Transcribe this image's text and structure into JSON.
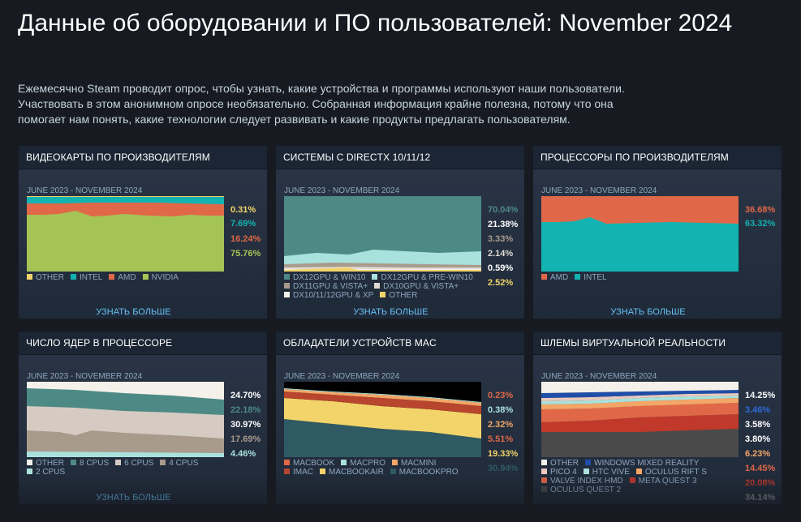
{
  "page": {
    "title": "Данные об оборудовании и ПО пользователей: November 2024",
    "intro_1": "Ежемесячно Steam проводит опрос, чтобы узнать, какие устройства и программы используют наши пользователи.",
    "intro_2": "Участвовать в этом анонимном опросе необязательно. Собранная информация крайне полезна, потому что она",
    "intro_3": "помогает нам понять, какие технологии следует развивать и какие продукты предлагать пользователям."
  },
  "learn_more": "УЗНАТЬ БОЛЬШЕ",
  "panels": [
    {
      "title": "ВИДЕОКАРТЫ ПО ПРОИЗВОДИТЕЛЯМ",
      "range": "JUNE 2023 - NOVEMBER 2024",
      "percents": [
        {
          "text": "0.31%",
          "color": "#f2d46a"
        },
        {
          "text": "7.69%",
          "color": "#13b3b2"
        },
        {
          "text": "16.24%",
          "color": "#e06848"
        },
        {
          "text": "75.76%",
          "color": "#a5c456"
        }
      ],
      "legend": [
        [
          {
            "label": "OTHER",
            "color": "#f2d46a"
          },
          {
            "label": "INTEL",
            "color": "#13b3b2"
          },
          {
            "label": "AMD",
            "color": "#e06848"
          },
          {
            "label": "NVIDIA",
            "color": "#a5c456"
          }
        ]
      ]
    },
    {
      "title": "СИСТЕМЫ С DIRECTX 10/11/12",
      "range": "JUNE 2023 - NOVEMBER 2024",
      "percents": [
        {
          "text": "70.04%",
          "color": "#4d8a86"
        },
        {
          "text": "21.38%",
          "color": "#ffffff"
        },
        {
          "text": "3.33%",
          "color": "#a89b8c"
        },
        {
          "text": "2.14%",
          "color": "#dedad2"
        },
        {
          "text": "0.59%",
          "color": "#ffffff"
        },
        {
          "text": "2.52%",
          "color": "#f2d46a"
        }
      ],
      "legend": [
        [
          {
            "label": "DX12GPU & WIN10",
            "color": "#4d8a86"
          },
          {
            "label": "DX12GPU & PRE-WIN10",
            "color": "#a9e1dc"
          }
        ],
        [
          {
            "label": "DX11GPU & VISTA+",
            "color": "#a89b8c"
          },
          {
            "label": "DX10GPU & VISTA+",
            "color": "#dedad2"
          }
        ],
        [
          {
            "label": "DX10/11/12GPU & XP",
            "color": "#f4f1ea"
          },
          {
            "label": "OTHER",
            "color": "#f2d46a"
          }
        ]
      ]
    },
    {
      "title": "ПРОЦЕССОРЫ ПО ПРОИЗВОДИТЕЛЯМ",
      "range": "JUNE 2023 - NOVEMBER 2024",
      "percents": [
        {
          "text": "36.68%",
          "color": "#e06848"
        },
        {
          "text": "63.32%",
          "color": "#13b3b2"
        }
      ],
      "legend": [
        [
          {
            "label": "AMD",
            "color": "#e06848"
          },
          {
            "label": "INTEL",
            "color": "#13b3b2"
          }
        ]
      ]
    },
    {
      "title": "ЧИСЛО ЯДЕР В ПРОЦЕССОРЕ",
      "range": "JUNE 2023 - NOVEMBER 2024",
      "percents": [
        {
          "text": "24.70%",
          "color": "#ffffff"
        },
        {
          "text": "22.18%",
          "color": "#4d8a86"
        },
        {
          "text": "30.97%",
          "color": "#ffffff"
        },
        {
          "text": "17.69%",
          "color": "#a89b8c"
        },
        {
          "text": "4.46%",
          "color": "#a9e1dc"
        }
      ],
      "legend": [
        [
          {
            "label": "OTHER",
            "color": "#f4f1ea"
          },
          {
            "label": "8 CPUS",
            "color": "#4d8a86"
          },
          {
            "label": "6 CPUS",
            "color": "#d6cbc2"
          },
          {
            "label": "4 CPUS",
            "color": "#a89b8c"
          }
        ],
        [
          {
            "label": "2 CPUS",
            "color": "#a9e1dc"
          }
        ]
      ]
    },
    {
      "title": "ОБЛАДАТЕЛИ УСТРОЙСТВ MAC",
      "range": "JUNE 2023 - NOVEMBER 2024",
      "percents": [
        {
          "text": "0.23%",
          "color": "#e06848"
        },
        {
          "text": "0.38%",
          "color": "#a9e1dc"
        },
        {
          "text": "2.32%",
          "color": "#f4a667"
        },
        {
          "text": "5.51%",
          "color": "#e06848"
        },
        {
          "text": "19.33%",
          "color": "#f2d46a"
        },
        {
          "text": "30.94%",
          "color": "#2f5a63"
        }
      ],
      "legend": [
        [
          {
            "label": "MACBOOK",
            "color": "#e06848"
          },
          {
            "label": "MACPRO",
            "color": "#a9e1dc"
          },
          {
            "label": "MACMINI",
            "color": "#f4a667"
          }
        ],
        [
          {
            "label": "IMAC",
            "color": "#b8452e"
          },
          {
            "label": "MACBOOKAIR",
            "color": "#f2d46a"
          },
          {
            "label": "MACBOOKPRO",
            "color": "#2f5a63"
          }
        ]
      ]
    },
    {
      "title": "ШЛЕМЫ ВИРТУАЛЬНОЙ РЕАЛЬНОСТИ",
      "range": "JUNE 2023 - NOVEMBER 2024",
      "percents": [
        {
          "text": "14.25%",
          "color": "#ffffff"
        },
        {
          "text": "3.46%",
          "color": "#2d6bd6"
        },
        {
          "text": "3.58%",
          "color": "#ffffff"
        },
        {
          "text": "3.80%",
          "color": "#ffffff"
        },
        {
          "text": "6.23%",
          "color": "#f4a667"
        },
        {
          "text": "14.45%",
          "color": "#e06848"
        },
        {
          "text": "20.08%",
          "color": "#c0392b"
        },
        {
          "text": "34.14%",
          "color": "#8c8c8c"
        }
      ],
      "legend": [
        [
          {
            "label": "OTHER",
            "color": "#f4f1ea"
          },
          {
            "label": "WINDOWS MIXED REALITY",
            "color": "#1f4ea8"
          }
        ],
        [
          {
            "label": "PICO 4",
            "color": "#e9c9bd"
          },
          {
            "label": "HTC VIVE",
            "color": "#a9e1dc"
          },
          {
            "label": "OCULUS RIFT S",
            "color": "#f4a667"
          }
        ],
        [
          {
            "label": "VALVE INDEX HMD",
            "color": "#e06848"
          },
          {
            "label": "META QUEST 3",
            "color": "#c0392b"
          }
        ],
        [
          {
            "label": "OCULUS QUEST 2",
            "color": "#4a4a4a"
          }
        ]
      ]
    }
  ]
}
